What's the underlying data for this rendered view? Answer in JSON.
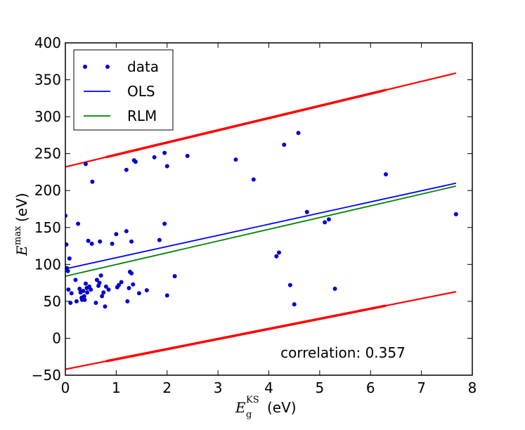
{
  "chart_data": {
    "type": "scatter",
    "xlabel_symbol": "E",
    "xlabel_sub": "g",
    "xlabel_sup": "KS",
    "xlabel_unit": "(eV)",
    "ylabel_symbol": "E",
    "ylabel_sup": "max",
    "ylabel_unit": "(eV)",
    "xlim": [
      0,
      8
    ],
    "ylim": [
      -50,
      400
    ],
    "xticks": [
      0,
      1,
      2,
      3,
      4,
      5,
      6,
      7,
      8
    ],
    "yticks": [
      -50,
      0,
      50,
      100,
      150,
      200,
      250,
      300,
      350,
      400
    ],
    "xtick_labels": [
      "0",
      "1",
      "2",
      "3",
      "4",
      "5",
      "6",
      "7",
      "8"
    ],
    "ytick_labels": [
      "−50",
      "0",
      "50",
      "100",
      "150",
      "200",
      "250",
      "300",
      "350",
      "400"
    ],
    "grid": false,
    "legend_position": "top-left",
    "annotation": "correlation: 0.357",
    "series": [
      {
        "name": "data",
        "kind": "points",
        "color": "#0000cc",
        "points": [
          [
            0.0,
            166
          ],
          [
            0.02,
            127
          ],
          [
            0.03,
            95
          ],
          [
            0.05,
            91
          ],
          [
            0.06,
            66
          ],
          [
            0.08,
            108
          ],
          [
            0.1,
            48
          ],
          [
            0.12,
            61
          ],
          [
            0.2,
            79
          ],
          [
            0.22,
            50
          ],
          [
            0.25,
            155
          ],
          [
            0.28,
            67
          ],
          [
            0.3,
            62
          ],
          [
            0.32,
            55
          ],
          [
            0.33,
            52
          ],
          [
            0.35,
            64
          ],
          [
            0.37,
            57
          ],
          [
            0.38,
            52
          ],
          [
            0.4,
            74
          ],
          [
            0.42,
            68
          ],
          [
            0.43,
            62
          ],
          [
            0.45,
            132
          ],
          [
            0.47,
            70
          ],
          [
            0.5,
            66
          ],
          [
            0.52,
            128
          ],
          [
            0.53,
            212
          ],
          [
            0.4,
            236
          ],
          [
            0.6,
            48
          ],
          [
            0.62,
            79
          ],
          [
            0.65,
            71
          ],
          [
            0.67,
            75
          ],
          [
            0.68,
            131
          ],
          [
            0.7,
            85
          ],
          [
            0.72,
            57
          ],
          [
            0.75,
            62
          ],
          [
            0.78,
            43
          ],
          [
            0.8,
            70
          ],
          [
            0.85,
            66
          ],
          [
            0.92,
            128
          ],
          [
            1.0,
            141
          ],
          [
            1.02,
            69
          ],
          [
            1.05,
            72
          ],
          [
            1.1,
            76
          ],
          [
            1.2,
            228
          ],
          [
            1.2,
            145
          ],
          [
            1.22,
            50
          ],
          [
            1.25,
            68
          ],
          [
            1.27,
            90
          ],
          [
            1.3,
            131
          ],
          [
            1.3,
            88
          ],
          [
            1.33,
            73
          ],
          [
            1.35,
            241
          ],
          [
            1.38,
            239
          ],
          [
            1.45,
            61
          ],
          [
            1.6,
            65
          ],
          [
            1.75,
            245
          ],
          [
            1.85,
            133
          ],
          [
            1.95,
            251
          ],
          [
            1.95,
            155
          ],
          [
            2.0,
            233
          ],
          [
            2.0,
            58
          ],
          [
            2.15,
            84
          ],
          [
            2.4,
            247
          ],
          [
            3.35,
            242
          ],
          [
            3.7,
            215
          ],
          [
            4.15,
            111
          ],
          [
            4.2,
            116
          ],
          [
            4.3,
            262
          ],
          [
            4.42,
            72
          ],
          [
            4.5,
            46
          ],
          [
            4.58,
            278
          ],
          [
            4.75,
            171
          ],
          [
            5.1,
            157
          ],
          [
            5.18,
            161
          ],
          [
            5.3,
            67
          ],
          [
            6.3,
            222
          ],
          [
            7.68,
            168
          ]
        ]
      },
      {
        "name": "OLS",
        "kind": "line",
        "color": "#0000ff",
        "x": [
          0,
          7.68
        ],
        "y": [
          94,
          210
        ]
      },
      {
        "name": "RLM",
        "kind": "line",
        "color": "#008000",
        "x": [
          0,
          7.68
        ],
        "y": [
          84,
          206
        ]
      },
      {
        "kind": "line",
        "color": "#ff0000",
        "x": [
          0,
          7.68
        ],
        "y": [
          232,
          359
        ]
      },
      {
        "kind": "line",
        "color": "#ff0000",
        "x": [
          0,
          7.68
        ],
        "y": [
          -42,
          63
        ]
      }
    ]
  }
}
